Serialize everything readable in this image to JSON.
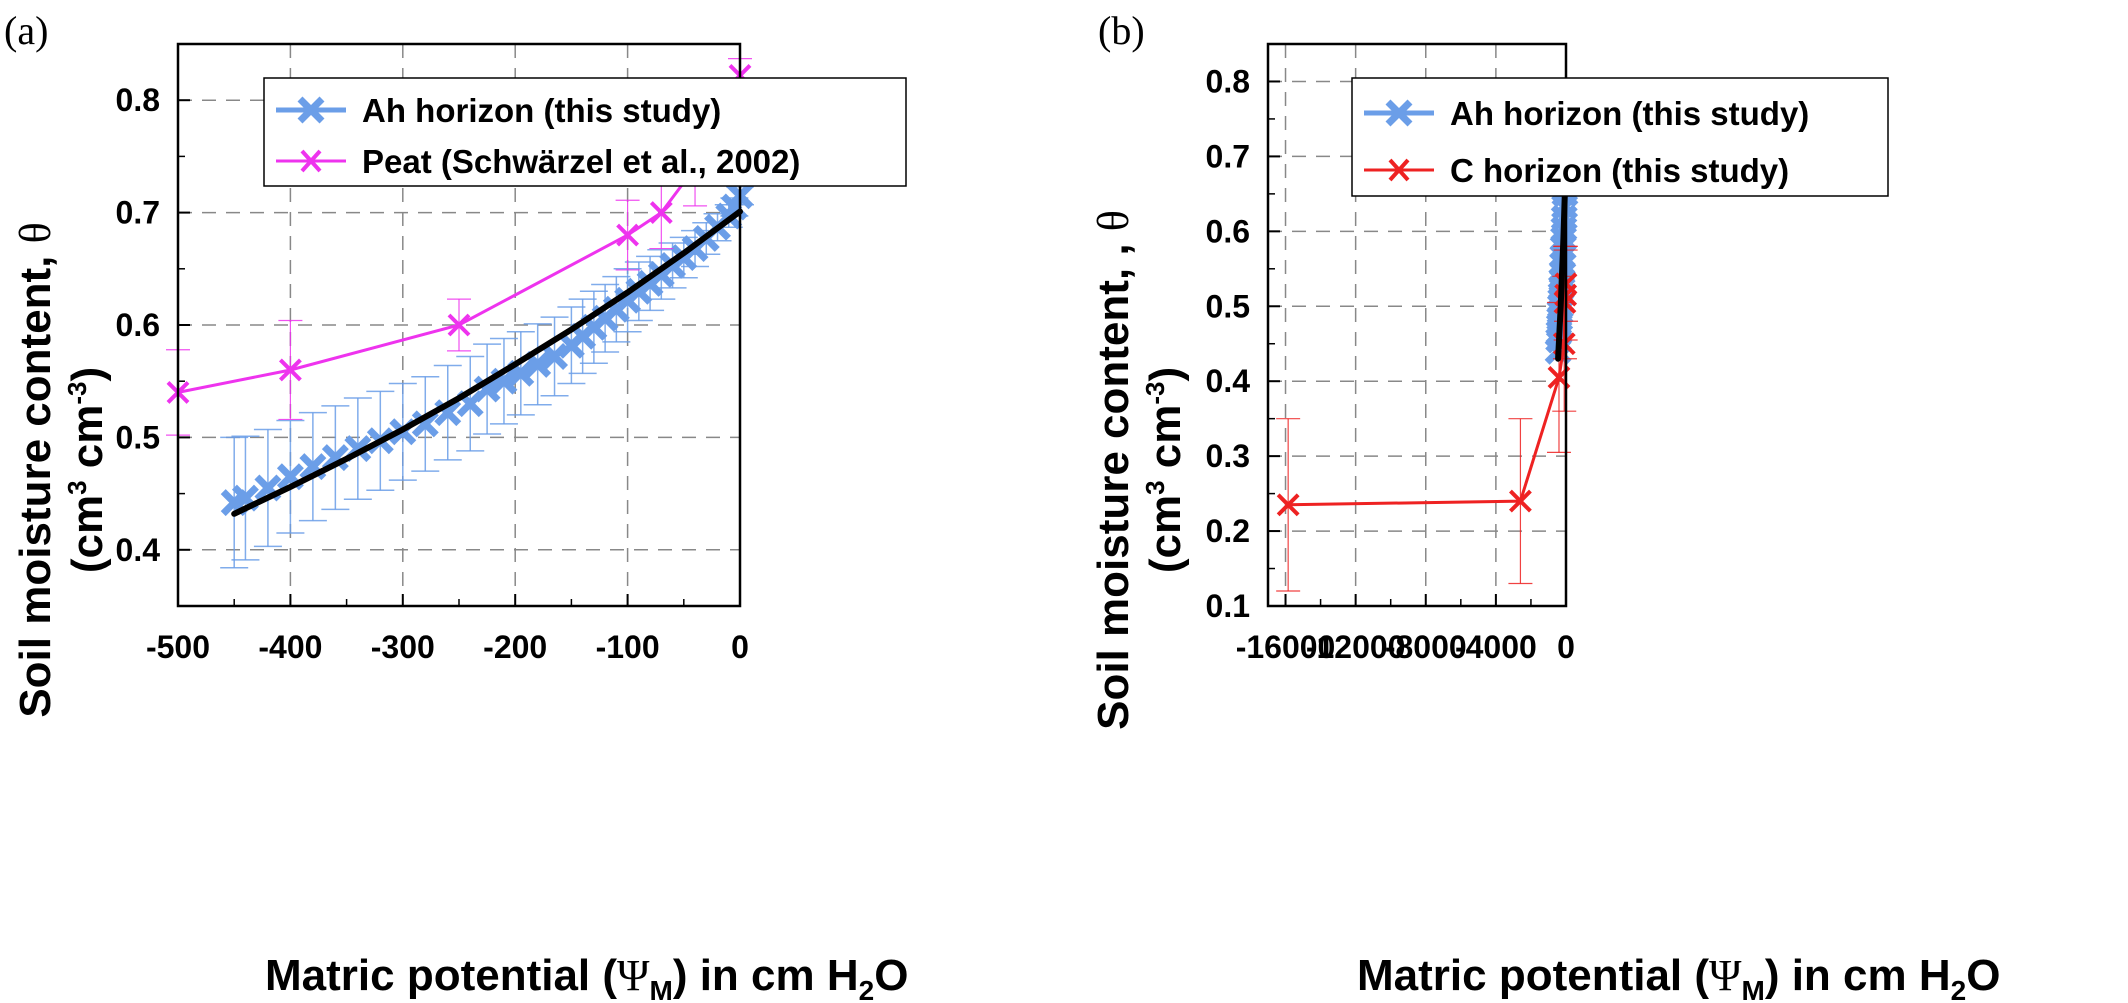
{
  "chart_data": [
    {
      "panel_label": "(a)",
      "type": "line",
      "xlabel_main": "Matric potential (",
      "xlabel_psi": "Ψ",
      "xlabel_psi_sub": "M",
      "xlabel_mid": ") in cm H",
      "xlabel_h2o_sub": "2",
      "xlabel_end": "O",
      "ylabel_line1_main": "Soil moisture content, ",
      "ylabel_line1_theta": "θ",
      "ylabel_line2_a": "(cm",
      "ylabel_line2_sup1": "3",
      "ylabel_line2_b": " cm",
      "ylabel_line2_sup2": "-3",
      "ylabel_line2_c": ")",
      "xlim": [
        -500,
        0
      ],
      "ylim": [
        0.35,
        0.85
      ],
      "xticks": [
        -500,
        -400,
        -300,
        -200,
        -100,
        0
      ],
      "xtick_labels": [
        "-500",
        "-400",
        "-300",
        "-200",
        "-100",
        "0"
      ],
      "yticks": [
        0.4,
        0.5,
        0.6,
        0.7,
        0.8
      ],
      "ytick_labels": [
        "0.4",
        "0.5",
        "0.6",
        "0.7",
        "0.8"
      ],
      "grid": true,
      "legend_position": "top-left",
      "series": [
        {
          "name": "Ah horizon (this study)",
          "color": "#6b9ee8",
          "marker": "x",
          "x": [
            -450,
            -440,
            -420,
            -400,
            -380,
            -360,
            -340,
            -320,
            -300,
            -280,
            -260,
            -240,
            -225,
            -210,
            -195,
            -180,
            -165,
            -150,
            -140,
            -130,
            -120,
            -110,
            -100,
            -90,
            -80,
            -70,
            -60,
            -50,
            -40,
            -30,
            -20,
            -10,
            -5,
            0
          ],
          "y": [
            0.442,
            0.446,
            0.455,
            0.465,
            0.474,
            0.482,
            0.49,
            0.497,
            0.505,
            0.512,
            0.522,
            0.53,
            0.543,
            0.55,
            0.557,
            0.565,
            0.572,
            0.582,
            0.59,
            0.598,
            0.606,
            0.614,
            0.622,
            0.63,
            0.637,
            0.645,
            0.653,
            0.66,
            0.668,
            0.677,
            0.687,
            0.697,
            0.705,
            0.715
          ],
          "err": [
            0.058,
            0.055,
            0.052,
            0.05,
            0.048,
            0.046,
            0.045,
            0.044,
            0.043,
            0.042,
            0.042,
            0.042,
            0.04,
            0.038,
            0.037,
            0.036,
            0.035,
            0.034,
            0.033,
            0.032,
            0.03,
            0.029,
            0.028,
            0.026,
            0.024,
            0.022,
            0.02,
            0.018,
            0.016,
            0.014,
            0.012,
            0.01,
            0.008,
            0.008
          ]
        },
        {
          "name": "Peat (Schwärzel et al., 2002)",
          "color": "#ee33ee",
          "marker": "x",
          "connected": true,
          "x": [
            -500,
            -400,
            -250,
            -100,
            -70,
            -40,
            0
          ],
          "y": [
            0.54,
            0.56,
            0.6,
            0.68,
            0.7,
            0.74,
            0.822
          ],
          "err": [
            0.038,
            0.044,
            0.023,
            0.031,
            0.032,
            0.034,
            0.015
          ]
        },
        {
          "name": "",
          "color": "#000000",
          "type": "fit",
          "x": [
            -450,
            -400,
            -350,
            -300,
            -250,
            -200,
            -150,
            -100,
            -50,
            0
          ],
          "y": [
            0.432,
            0.456,
            0.481,
            0.507,
            0.535,
            0.565,
            0.596,
            0.629,
            0.664,
            0.701
          ]
        }
      ]
    },
    {
      "panel_label": "(b)",
      "type": "line",
      "xlabel_main": "Matric potential (",
      "xlabel_psi": "Ψ",
      "xlabel_psi_sub": "M",
      "xlabel_mid": ") in cm H",
      "xlabel_h2o_sub": "2",
      "xlabel_end": "O",
      "ylabel_line1_main": "Soil moisture content, , ",
      "ylabel_line1_theta": "θ",
      "ylabel_line2_a": "(cm",
      "ylabel_line2_sup1": "3",
      "ylabel_line2_b": " cm",
      "ylabel_line2_sup2": "-3",
      "ylabel_line2_c": ")",
      "xlim": [
        -17000,
        0
      ],
      "ylim": [
        0.1,
        0.85
      ],
      "xticks": [
        -16000,
        -12000,
        -8000,
        -4000,
        0
      ],
      "xtick_labels": [
        "-16000",
        "-12000",
        "-8000",
        "-4000",
        "0"
      ],
      "yticks": [
        0.1,
        0.2,
        0.3,
        0.4,
        0.5,
        0.6,
        0.7,
        0.8
      ],
      "ytick_labels": [
        "0.1",
        "0.2",
        "0.3",
        "0.4",
        "0.5",
        "0.6",
        "0.7",
        "0.8"
      ],
      "grid": true,
      "legend_position": "top-left",
      "series": [
        {
          "name": "Ah horizon (this study)",
          "color": "#6b9ee8",
          "marker": "x",
          "x": [
            -450,
            -420,
            -400,
            -380,
            -360,
            -340,
            -320,
            -300,
            -280,
            -260,
            -240,
            -220,
            -200,
            -180,
            -160,
            -140,
            -120,
            -100,
            -80,
            -60,
            -40,
            -20,
            0
          ],
          "y": [
            0.44,
            0.455,
            0.465,
            0.474,
            0.483,
            0.492,
            0.5,
            0.508,
            0.516,
            0.525,
            0.535,
            0.545,
            0.556,
            0.566,
            0.578,
            0.59,
            0.603,
            0.618,
            0.633,
            0.65,
            0.668,
            0.69,
            0.712
          ]
        },
        {
          "name": "C horizon (this study)",
          "color": "#ee2222",
          "marker": "x",
          "connected": true,
          "x": [
            -15850,
            -2600,
            -400,
            -100,
            -60,
            -20,
            0
          ],
          "y": [
            0.235,
            0.24,
            0.405,
            0.45,
            0.505,
            0.515,
            0.53
          ],
          "err": [
            0.115,
            0.11,
            0.1,
            0.09,
            0.075,
            0.06,
            0.05
          ]
        },
        {
          "name": "",
          "color": "#000000",
          "type": "fit",
          "x": [
            -450,
            -300,
            -150,
            0
          ],
          "y": [
            0.43,
            0.5,
            0.59,
            0.7
          ]
        }
      ]
    }
  ]
}
